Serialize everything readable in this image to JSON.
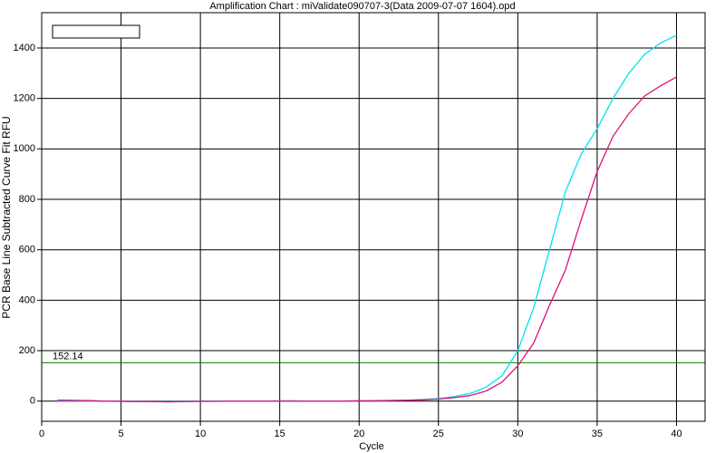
{
  "chart_data": {
    "type": "line",
    "title": "Amplification Chart : miValidate090707-3(Data 2009-07-07 1604).opd",
    "xlabel": "Cycle",
    "ylabel": "PCR Base Line Subtracted Curve Fit RFU",
    "x": [
      1,
      2,
      3,
      4,
      5,
      6,
      7,
      8,
      9,
      10,
      11,
      12,
      13,
      14,
      15,
      16,
      17,
      18,
      19,
      20,
      21,
      22,
      23,
      24,
      25,
      26,
      27,
      28,
      29,
      30,
      31,
      32,
      33,
      34,
      35,
      36,
      37,
      38,
      39,
      40
    ],
    "series": [
      {
        "color": "#00e0f0",
        "values": [
          2,
          2,
          1,
          0,
          -1,
          -1,
          -2,
          -2,
          -1,
          -1,
          0,
          0,
          0,
          0,
          1,
          1,
          0,
          0,
          0,
          1,
          2,
          3,
          4,
          6,
          10,
          18,
          30,
          55,
          100,
          200,
          370,
          600,
          830,
          980,
          1080,
          1200,
          1300,
          1375,
          1420,
          1450
        ]
      },
      {
        "color": "#e0107a",
        "values": [
          4,
          3,
          2,
          0,
          -1,
          -2,
          -2,
          -3,
          -2,
          -1,
          -1,
          0,
          0,
          0,
          0,
          0,
          0,
          0,
          0,
          1,
          1,
          2,
          3,
          5,
          8,
          14,
          22,
          40,
          75,
          140,
          230,
          380,
          520,
          720,
          910,
          1050,
          1140,
          1210,
          1250,
          1285
        ]
      }
    ],
    "xlim": [
      0,
      41.8
    ],
    "ylim": [
      -80,
      1540
    ],
    "xticks": [
      0,
      5,
      10,
      15,
      20,
      25,
      30,
      35,
      40
    ],
    "yticks": [
      0,
      200,
      400,
      600,
      800,
      1000,
      1200,
      1400
    ],
    "grid": true,
    "threshold": 152.14,
    "threshold_color": "#008000"
  }
}
